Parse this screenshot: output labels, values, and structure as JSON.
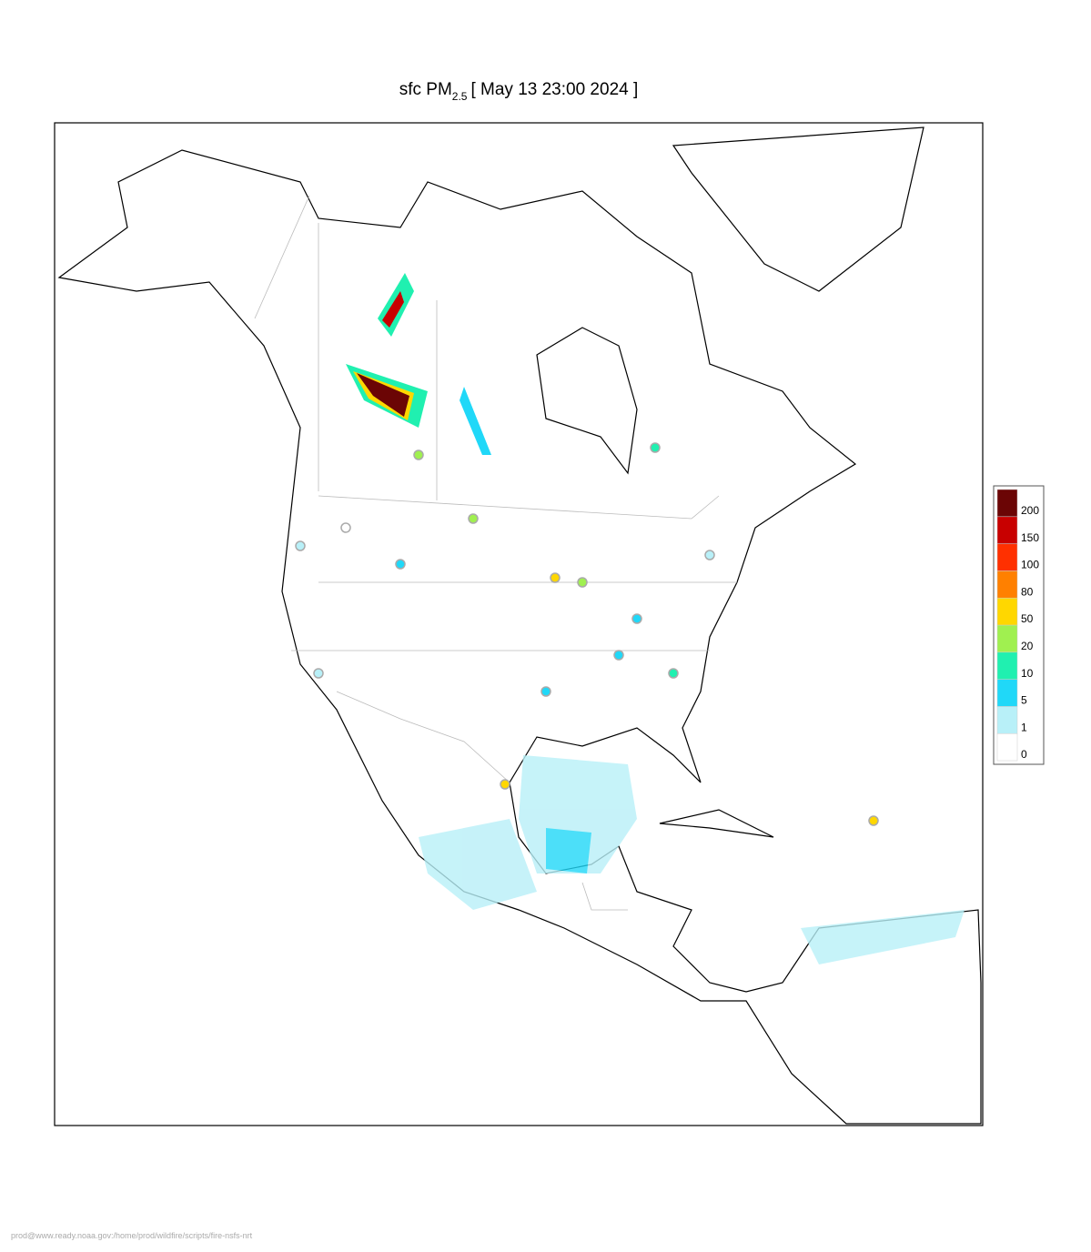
{
  "title": {
    "prefix": "sfc PM",
    "subscript": "2.5",
    "suffix": "[ May 13 23:00 2024 ]"
  },
  "legend": {
    "levels": [
      0,
      1,
      5,
      10,
      20,
      50,
      80,
      100,
      150,
      200
    ],
    "colors": [
      "#ffffff",
      "#b8f0f8",
      "#20d8f8",
      "#20f0b0",
      "#a0f050",
      "#ffd700",
      "#ff8000",
      "#ff3000",
      "#c80000",
      "#6b0505"
    ]
  },
  "footer": "prod@www.ready.noaa.gov:/home/prod/wildfire/scripts/fire-nsfs-nrt"
}
